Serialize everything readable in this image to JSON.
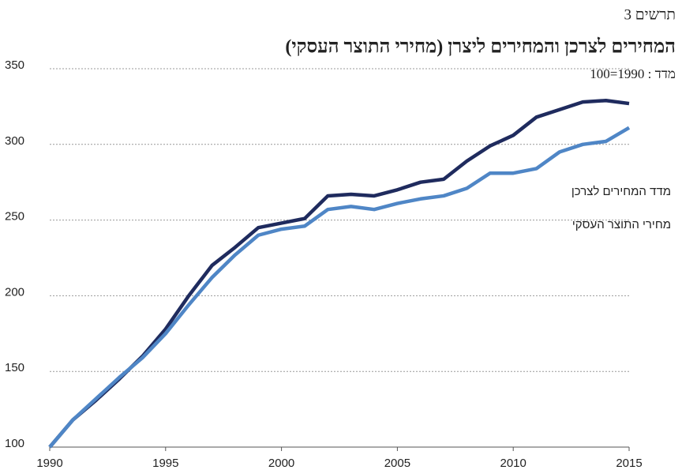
{
  "chart_data": {
    "type": "line",
    "label": "תרשים 3",
    "title": "המחירים לצרכן והמחירים ליצרן (מחירי התוצר העסקי)",
    "subtitle": "מדד : 1990=100",
    "x": [
      1990,
      1991,
      1992,
      1993,
      1994,
      1995,
      1996,
      1997,
      1998,
      1999,
      2000,
      2001,
      2002,
      2003,
      2004,
      2005,
      2006,
      2007,
      2008,
      2009,
      2010,
      2011,
      2012,
      2013,
      2014,
      2015
    ],
    "series": [
      {
        "name": "מדד המחירים לצרכן",
        "color": "#1f2b5e",
        "values": [
          100,
          118,
          131,
          145,
          160,
          178,
          200,
          220,
          232,
          245,
          248,
          251,
          266,
          267,
          266,
          270,
          275,
          277,
          289,
          299,
          306,
          318,
          323,
          328,
          329,
          327
        ]
      },
      {
        "name": "מחירי התוצר העסקי",
        "color": "#4f86c6",
        "values": [
          100,
          118,
          132,
          146,
          159,
          175,
          194,
          212,
          227,
          240,
          244,
          246,
          257,
          259,
          257,
          261,
          264,
          266,
          271,
          281,
          281,
          284,
          295,
          300,
          302,
          311
        ]
      }
    ],
    "xlim": [
      1990,
      2015
    ],
    "xticks": [
      1990,
      1995,
      2000,
      2005,
      2010,
      2015
    ],
    "ylim": [
      100,
      350
    ],
    "yticks": [
      100,
      150,
      200,
      250,
      300,
      350
    ],
    "grid": true
  }
}
